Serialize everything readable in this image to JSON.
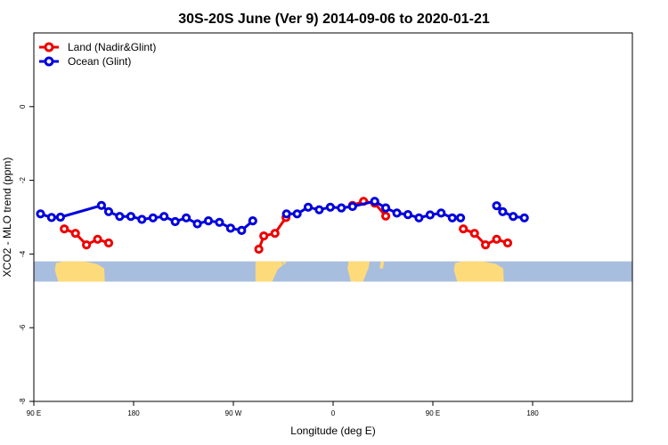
{
  "chart_data": {
    "type": "line",
    "title": "30S-20S June (Ver 9)   2014-09-06 to 2020-01-21",
    "xlabel": "Longitude (deg E)",
    "ylabel": "XCO2 - MLO trend (ppm)",
    "xlim": [
      90,
      630
    ],
    "ylim": [
      -8,
      2
    ],
    "x_ticks": [
      {
        "value": 90,
        "label": "90 E"
      },
      {
        "value": 180,
        "label": "180"
      },
      {
        "value": 270,
        "label": "90 W"
      },
      {
        "value": 360,
        "label": "0"
      },
      {
        "value": 450,
        "label": "90 E"
      },
      {
        "value": 540,
        "label": "180"
      }
    ],
    "y_ticks": [
      {
        "value": 0,
        "label": "0"
      },
      {
        "value": -2,
        "label": "-2"
      },
      {
        "value": -4,
        "label": "-4"
      },
      {
        "value": -6,
        "label": "-6"
      },
      {
        "value": -8,
        "label": "-8"
      }
    ],
    "grid": false,
    "legend_position": "top-left",
    "colors": {
      "land": "#ee0000",
      "ocean": "#0000dd",
      "map_ocean": "#a8bedf",
      "map_land": "#fedb7a"
    },
    "map_band": {
      "y_top": -4.2,
      "y_bottom": -4.75
    },
    "series": [
      {
        "name": "Land (Nadir&Glint)",
        "color": "#ee0000",
        "segments": [
          [
            [
              117.5,
              -3.32
            ],
            [
              127.5,
              -3.44
            ],
            [
              137.5,
              -3.75
            ],
            [
              147.5,
              -3.6
            ],
            [
              157.5,
              -3.7
            ]
          ],
          [
            [
              293,
              -3.87
            ],
            [
              297.5,
              -3.51
            ],
            [
              307.5,
              -3.44
            ],
            [
              317.5,
              -3.01
            ]
          ],
          [
            [
              377.5,
              -2.68
            ],
            [
              387.5,
              -2.57
            ],
            [
              397.5,
              -2.62
            ],
            [
              407.5,
              -2.97
            ]
          ],
          [
            [
              477.5,
              -3.32
            ],
            [
              487.5,
              -3.44
            ],
            [
              497.5,
              -3.75
            ],
            [
              507.5,
              -3.6
            ],
            [
              517.5,
              -3.7
            ]
          ]
        ]
      },
      {
        "name": "Ocean (Glint)",
        "color": "#0000dd",
        "segments": [
          [
            [
              96,
              -2.91
            ],
            [
              106,
              -3.01
            ],
            [
              114,
              -3.0
            ],
            [
              151,
              -2.68
            ],
            [
              157.5,
              -2.85
            ],
            [
              167.5,
              -2.98
            ],
            [
              177.5,
              -2.98
            ],
            [
              187.5,
              -3.06
            ],
            [
              197.5,
              -3.02
            ],
            [
              207.5,
              -2.98
            ],
            [
              217.5,
              -3.12
            ],
            [
              227.5,
              -3.02
            ],
            [
              237.5,
              -3.18
            ],
            [
              247.5,
              -3.1
            ],
            [
              257.5,
              -3.14
            ],
            [
              267.5,
              -3.3
            ],
            [
              277.5,
              -3.36
            ],
            [
              287.5,
              -3.1
            ]
          ],
          [
            [
              318,
              -2.91
            ],
            [
              327.5,
              -2.91
            ],
            [
              337.5,
              -2.73
            ],
            [
              347.5,
              -2.8
            ],
            [
              357.5,
              -2.73
            ],
            [
              367.5,
              -2.75
            ],
            [
              377.5,
              -2.71
            ],
            [
              397.5,
              -2.57
            ],
            [
              407.5,
              -2.75
            ],
            [
              417.5,
              -2.89
            ],
            [
              427.5,
              -2.93
            ],
            [
              437.5,
              -3.02
            ],
            [
              447.5,
              -2.94
            ],
            [
              457.5,
              -2.89
            ],
            [
              467.5,
              -3.02
            ],
            [
              475,
              -3.02
            ]
          ],
          [
            [
              507.5,
              -2.69
            ],
            [
              513,
              -2.85
            ],
            [
              522.5,
              -2.98
            ],
            [
              532.5,
              -3.02
            ]
          ]
        ]
      }
    ]
  }
}
